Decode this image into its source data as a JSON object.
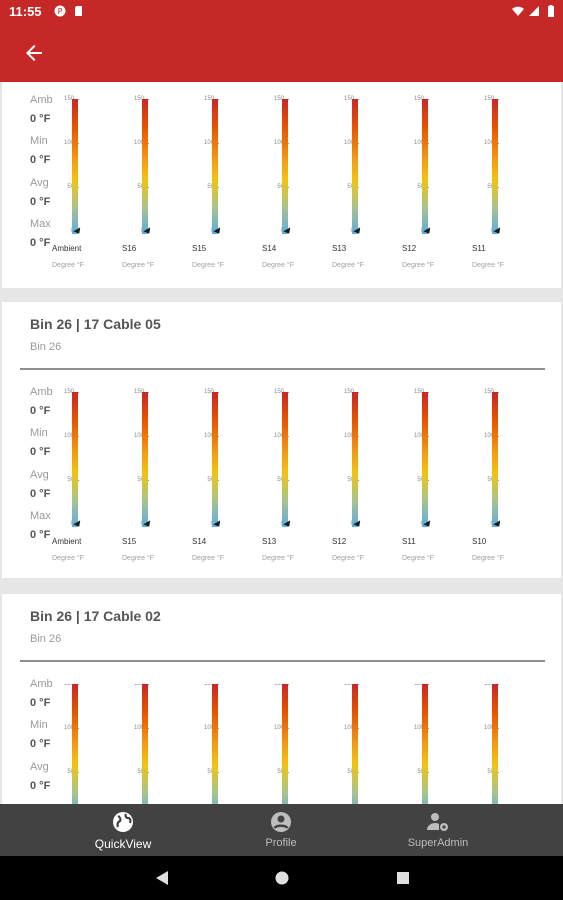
{
  "status_bar": {
    "time": "11:55"
  },
  "stat_labels": {
    "amb": "Amb",
    "min": "Min",
    "avg": "Avg",
    "max": "Max"
  },
  "top_panel": {
    "stats": {
      "amb": "0 °F",
      "min": "0 °F",
      "avg": "0 °F",
      "max": "0 °F"
    },
    "sensors": [
      "Ambient",
      "S16",
      "S15",
      "S14",
      "S13",
      "S12",
      "S11"
    ]
  },
  "cards": [
    {
      "title": "Bin 26 | 17 Cable 05",
      "subtitle": "Bin 26",
      "stats": {
        "amb": "0 °F",
        "min": "0 °F",
        "avg": "0 °F",
        "max": "0 °F"
      },
      "sensors": [
        "Ambient",
        "S15",
        "S14",
        "S13",
        "S12",
        "S11",
        "S10"
      ]
    },
    {
      "title": "Bin 26 | 17 Cable 02",
      "subtitle": "Bin 26",
      "stats": {
        "amb": "0 °F",
        "min": "0 °F",
        "avg": "0 °F"
      },
      "sensors": []
    }
  ],
  "gauge_scale": {
    "ticks": [
      "150",
      "100",
      "50",
      "0"
    ],
    "unit": "Degree °F",
    "value": 0
  },
  "bottom_nav": {
    "quickview": "QuickView",
    "profile": "Profile",
    "superadmin": "SuperAdmin"
  },
  "colors": {
    "primary": "#c62828",
    "nav_bg": "#424242"
  }
}
